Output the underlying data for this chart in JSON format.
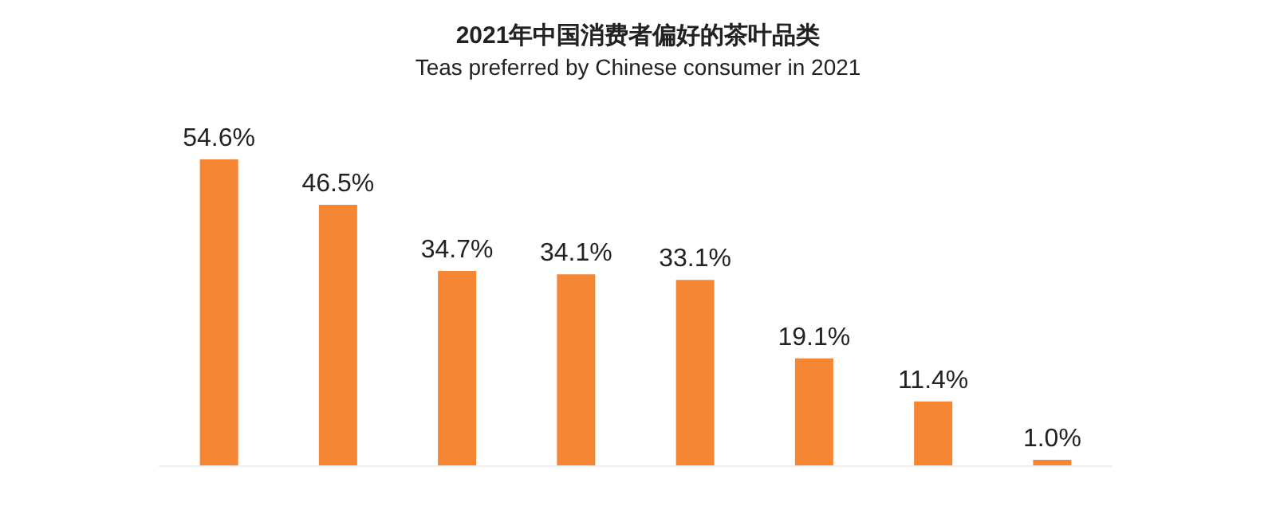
{
  "chart_data": {
    "type": "bar",
    "title": "2021年中国消费者偏好的茶叶品类",
    "subtitle": "Teas preferred by Chinese consumer in 2021",
    "categories": [
      null,
      null,
      null,
      null,
      null,
      null,
      null,
      null
    ],
    "values": [
      54.6,
      46.5,
      34.7,
      34.1,
      33.1,
      19.1,
      11.4,
      1.0
    ],
    "value_labels": [
      "54.6%",
      "46.5%",
      "34.7%",
      "34.1%",
      "33.1%",
      "19.1%",
      "11.4%",
      "1.0%"
    ],
    "color": "#f58634",
    "grid": false
  }
}
